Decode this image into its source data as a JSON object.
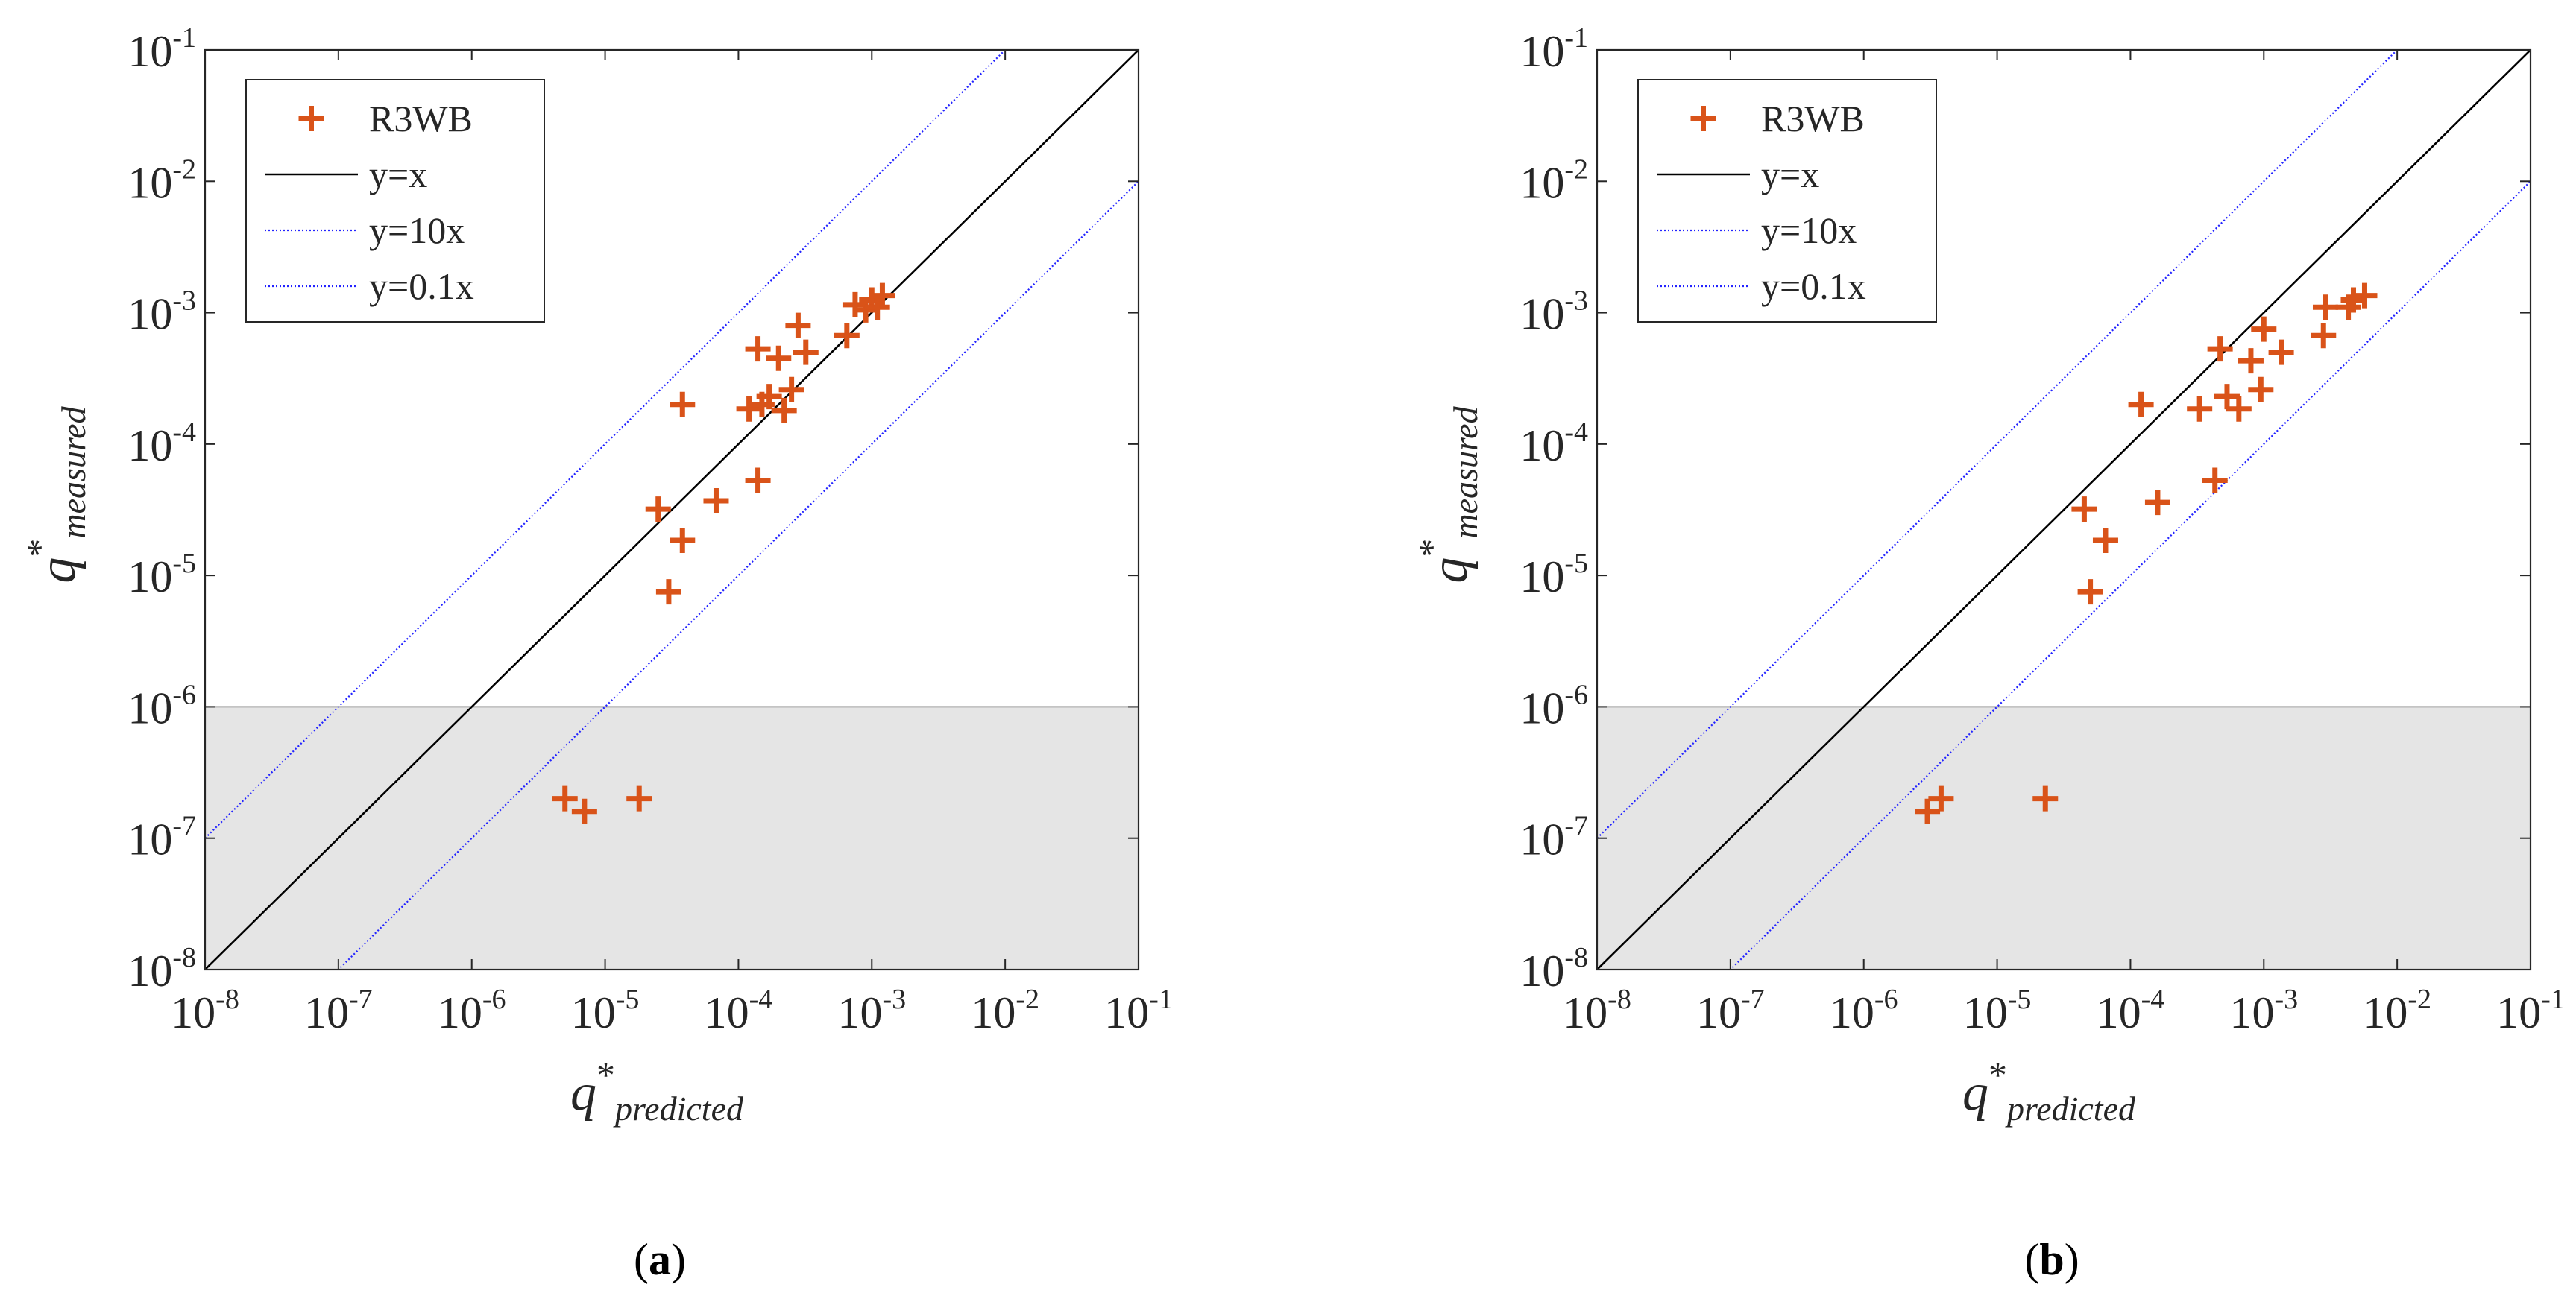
{
  "chart_data": [
    {
      "type": "scatter",
      "panel_label": "a",
      "xlabel": {
        "base": "q",
        "sup": "*",
        "sub": "predicted"
      },
      "ylabel": {
        "base": "q",
        "sup": "*",
        "sub": "measured"
      },
      "xscale": "log",
      "yscale": "log",
      "xlim": [
        1e-08,
        0.1
      ],
      "ylim": [
        1e-08,
        0.1
      ],
      "tick_exponents": [
        "-8",
        "-7",
        "-6",
        "-5",
        "-4",
        "-3",
        "-2",
        "-1"
      ],
      "tick_base": "10",
      "shaded_region": {
        "y_from": 1e-08,
        "y_to": 1e-06,
        "color": "#e5e5e5"
      },
      "legend_position": "top-left",
      "series": [
        {
          "name": "R3WB",
          "kind": "points",
          "marker": "+",
          "color": "#D95319",
          "points": [
            [
              5e-06,
              2e-07
            ],
            [
              7e-06,
              1.6e-07
            ],
            [
              1.8e-05,
              2e-07
            ],
            [
              2.5e-05,
              3.2e-05
            ],
            [
              3e-05,
              7.5e-06
            ],
            [
              3.8e-05,
              1.85e-05
            ],
            [
              3.8e-05,
              0.0002
            ],
            [
              6.8e-05,
              3.7e-05
            ],
            [
              0.00012,
              0.000185
            ],
            [
              0.00014,
              0.00053
            ],
            [
              0.00014,
              5.3e-05
            ],
            [
              0.00015,
              0.0002
            ],
            [
              0.00017,
              0.00023
            ],
            [
              0.0002,
              0.00045
            ],
            [
              0.00022,
              0.00018
            ],
            [
              0.00025,
              0.00026
            ],
            [
              0.00028,
              0.0008
            ],
            [
              0.00032,
              0.0005
            ],
            [
              0.00065,
              0.00067
            ],
            [
              0.00075,
              0.00115
            ],
            [
              0.0009,
              0.00105
            ],
            [
              0.001,
              0.00125
            ],
            [
              0.0011,
              0.0011
            ],
            [
              0.0012,
              0.00135
            ]
          ]
        },
        {
          "name": "y=x",
          "kind": "line",
          "factor": 1,
          "color": "#000000",
          "style": "solid"
        },
        {
          "name": "y=10x",
          "kind": "line",
          "factor": 10,
          "color": "#2323FF",
          "style": "dotted"
        },
        {
          "name": "y=0.1x",
          "kind": "line",
          "factor": 0.1,
          "color": "#2323FF",
          "style": "dotted"
        }
      ]
    },
    {
      "type": "scatter",
      "panel_label": "b",
      "xlabel": {
        "base": "q",
        "sup": "*",
        "sub": "predicted"
      },
      "ylabel": {
        "base": "q",
        "sup": "*",
        "sub": "measured"
      },
      "xscale": "log",
      "yscale": "log",
      "xlim": [
        1e-08,
        0.1
      ],
      "ylim": [
        1e-08,
        0.1
      ],
      "tick_exponents": [
        "-8",
        "-7",
        "-6",
        "-5",
        "-4",
        "-3",
        "-2",
        "-1"
      ],
      "tick_base": "10",
      "shaded_region": {
        "y_from": 1e-08,
        "y_to": 1e-06,
        "color": "#e5e5e5"
      },
      "legend_position": "top-left",
      "series": [
        {
          "name": "R3WB",
          "kind": "points",
          "marker": "+",
          "color": "#D95319",
          "points": [
            [
              3e-06,
              1.6e-07
            ],
            [
              3.8e-06,
              2e-07
            ],
            [
              2.3e-05,
              2e-07
            ],
            [
              4.5e-05,
              3.2e-05
            ],
            [
              5e-05,
              7.5e-06
            ],
            [
              6.5e-05,
              1.85e-05
            ],
            [
              0.00012,
              0.0002
            ],
            [
              0.00016,
              3.6e-05
            ],
            [
              0.00033,
              0.000185
            ],
            [
              0.00043,
              5.3e-05
            ],
            [
              0.00047,
              0.00053
            ],
            [
              0.00053,
              0.00023
            ],
            [
              0.00065,
              0.000185
            ],
            [
              0.0008,
              0.00043
            ],
            [
              0.00095,
              0.00026
            ],
            [
              0.001,
              0.00075
            ],
            [
              0.00135,
              0.0005
            ],
            [
              0.0028,
              0.00067
            ],
            [
              0.0029,
              0.0011
            ],
            [
              0.0043,
              0.0011
            ],
            [
              0.0047,
              0.00125
            ],
            [
              0.0057,
              0.00135
            ]
          ]
        },
        {
          "name": "y=x",
          "kind": "line",
          "factor": 1,
          "color": "#000000",
          "style": "solid"
        },
        {
          "name": "y=10x",
          "kind": "line",
          "factor": 10,
          "color": "#2323FF",
          "style": "dotted"
        },
        {
          "name": "y=0.1x",
          "kind": "line",
          "factor": 0.1,
          "color": "#2323FF",
          "style": "dotted"
        }
      ]
    }
  ]
}
